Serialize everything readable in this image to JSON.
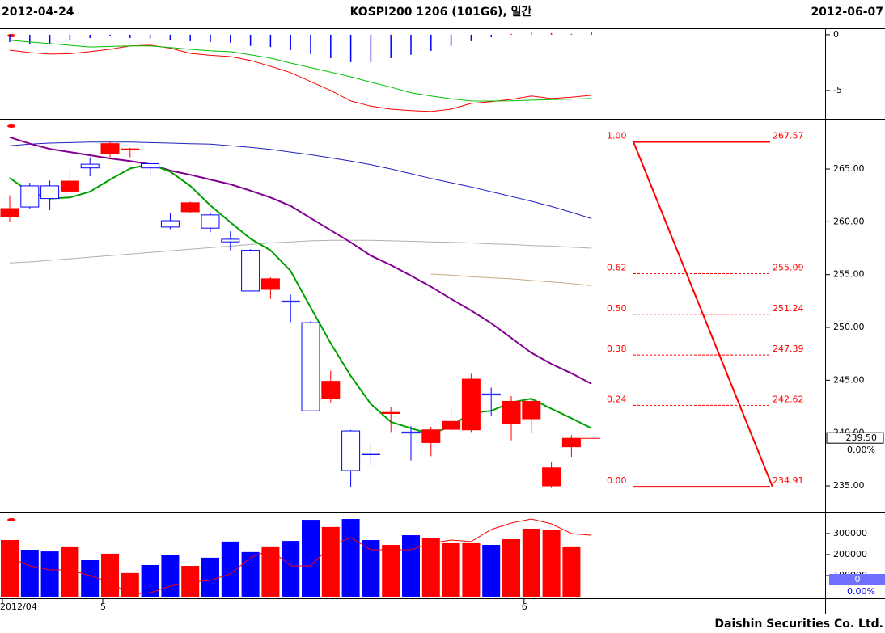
{
  "header": {
    "left": "2012-04-24",
    "title": "KOSPI200 1206 (101G6), 일간",
    "right": "2012-06-07"
  },
  "footer": "Daishin Securities Co. Ltd.",
  "chart_data": [
    {
      "type": "macd",
      "ylim": [
        -7.54,
        0.5
      ],
      "yticks": [
        0,
        -5
      ],
      "pos_color": "#ff0000",
      "neg_color": "#0000ff",
      "histogram": [
        -0.65,
        -0.87,
        -0.87,
        -0.5,
        -0.3,
        -0.15,
        -0.3,
        -0.35,
        -0.5,
        -0.58,
        -0.65,
        -0.72,
        -1.0,
        -1.1,
        -1.38,
        -1.74,
        -2.1,
        -2.46,
        -2.46,
        -2.1,
        -1.8,
        -1.45,
        -1.0,
        -0.58,
        -0.22,
        0,
        0.2,
        0.15,
        0.08,
        0.2
      ],
      "lines": [
        {
          "color": "#ff0000",
          "values": [
            -1.38,
            -1.6,
            -1.74,
            -1.7,
            -1.52,
            -1.3,
            -1.0,
            -0.94,
            -1.2,
            -1.67,
            -1.85,
            -1.96,
            -2.3,
            -2.83,
            -3.4,
            -4.2,
            -5.0,
            -5.94,
            -6.4,
            -6.67,
            -6.8,
            -6.88,
            -6.67,
            -6.16,
            -6.0,
            -5.8,
            -5.5,
            -5.72,
            -5.6,
            -5.43
          ]
        },
        {
          "color": "#00c000",
          "values": [
            -0.5,
            -0.65,
            -0.8,
            -0.95,
            -1.1,
            -1.05,
            -1.0,
            -1.0,
            -1.15,
            -1.3,
            -1.45,
            -1.52,
            -1.8,
            -2.1,
            -2.54,
            -2.95,
            -3.35,
            -3.77,
            -4.25,
            -4.7,
            -5.2,
            -5.5,
            -5.75,
            -5.94,
            -5.95,
            -5.93,
            -5.87,
            -5.82,
            -5.77,
            -5.72
          ]
        }
      ]
    },
    {
      "type": "candlestick",
      "ylim": [
        232.55,
        269.67
      ],
      "yticks": [
        {
          "value": 235,
          "label": "235.00"
        },
        {
          "value": 240,
          "label": "240.00"
        },
        {
          "value": 245,
          "label": "245.00"
        },
        {
          "value": 250,
          "label": "250.00"
        },
        {
          "value": 255,
          "label": "255.00"
        },
        {
          "value": 260,
          "label": "260.00"
        },
        {
          "value": 265,
          "label": "265.00"
        }
      ],
      "up_color": "#ff0000",
      "down_color": "#0000ff",
      "open": [
        260.5,
        263.4,
        263.4,
        262.9,
        265.45,
        266.45,
        266.8,
        265.5,
        260.1,
        260.95,
        260.65,
        258.35,
        257.3,
        253.6,
        252.5,
        250.45,
        243.3,
        240.2,
        238.05,
        241.85,
        240.1,
        239.1,
        240.35,
        240.3,
        243.7,
        240.9,
        241.35,
        235.0,
        238.7,
        null
      ],
      "high": [
        262.5,
        263.7,
        263.9,
        264.9,
        266.1,
        267.6,
        267.0,
        265.9,
        260.8,
        261.9,
        260.9,
        259.1,
        257.4,
        254.75,
        253.1,
        250.6,
        245.9,
        240.3,
        239.05,
        242.5,
        240.65,
        240.6,
        242.5,
        245.6,
        244.3,
        243.5,
        243.35,
        237.3,
        239.8,
        null
      ],
      "low": [
        260.0,
        261.2,
        261.1,
        262.8,
        264.3,
        266.1,
        266.1,
        264.3,
        259.3,
        260.8,
        259.0,
        257.3,
        253.45,
        252.7,
        250.5,
        242.1,
        242.9,
        234.9,
        236.85,
        240.1,
        237.4,
        237.8,
        240.1,
        240.1,
        241.6,
        239.3,
        240.05,
        234.8,
        237.75,
        null
      ],
      "close": [
        261.25,
        261.4,
        262.2,
        263.85,
        265.1,
        267.4,
        266.9,
        265.1,
        259.5,
        261.8,
        259.4,
        258.1,
        253.45,
        254.6,
        252.4,
        242.1,
        244.9,
        236.45,
        237.95,
        241.95,
        240.0,
        240.3,
        241.1,
        245.1,
        243.6,
        243.0,
        243.0,
        236.7,
        239.5,
        null
      ],
      "lines": [
        {
          "color": "#b0b0b0",
          "values": [
            256.1,
            256.2,
            256.35,
            256.5,
            256.65,
            256.8,
            256.95,
            257.1,
            257.25,
            257.4,
            257.55,
            257.7,
            257.85,
            258.0,
            258.1,
            258.2,
            258.25,
            258.25,
            258.25,
            258.2,
            258.15,
            258.1,
            258.05,
            258.0,
            257.9,
            257.85,
            257.75,
            257.7,
            257.6,
            257.5
          ]
        },
        {
          "color": "#c8a880",
          "values": [
            null,
            null,
            null,
            null,
            null,
            null,
            null,
            null,
            null,
            null,
            null,
            null,
            null,
            null,
            null,
            null,
            null,
            null,
            null,
            null,
            null,
            255.05,
            254.95,
            254.8,
            254.7,
            254.6,
            254.45,
            254.3,
            254.15,
            253.95
          ]
        },
        {
          "color": "#2020c0",
          "values": [
            267.2,
            267.35,
            267.45,
            267.5,
            267.55,
            267.55,
            267.55,
            267.5,
            267.45,
            267.4,
            267.35,
            267.2,
            267.05,
            266.85,
            266.6,
            266.35,
            266.05,
            265.75,
            265.4,
            265.0,
            264.55,
            264.1,
            263.7,
            263.3,
            262.85,
            262.4,
            261.95,
            261.45,
            260.9,
            260.3
          ]
        },
        {
          "color": "#800090",
          "values": [
            268.0,
            267.4,
            266.9,
            266.6,
            266.3,
            266.0,
            265.75,
            265.45,
            264.85,
            264.45,
            264.0,
            263.55,
            262.95,
            262.3,
            261.5,
            260.35,
            259.2,
            258.05,
            256.8,
            255.9,
            254.9,
            253.85,
            252.7,
            251.6,
            250.4,
            249.0,
            247.6,
            246.55,
            245.65,
            244.65
          ]
        },
        {
          "color": "#00a000",
          "values": [
            264.15,
            262.8,
            262.2,
            262.3,
            262.85,
            264.0,
            265.05,
            265.45,
            264.75,
            263.4,
            261.55,
            259.95,
            258.4,
            257.3,
            255.35,
            251.9,
            248.5,
            245.4,
            242.75,
            241.05,
            240.45,
            239.9,
            240.65,
            241.9,
            242.1,
            242.9,
            243.25,
            242.3,
            241.4,
            240.45
          ]
        }
      ],
      "fib_color": "#ff0000",
      "fib_ratios": [
        {
          "value": 1,
          "label": "1.00"
        },
        0.62,
        {
          "value": 0.5,
          "label": "0.50"
        },
        0.38,
        0.24,
        {
          "value": 0,
          "label": "0.00"
        }
      ],
      "fib_prices": [
        267.57,
        255.09,
        251.24,
        247.39,
        242.62,
        234.91
      ],
      "current": {
        "value": 239.5,
        "label": "239.50"
      },
      "change": "0.00%"
    },
    {
      "type": "bar",
      "ylim": [
        0,
        396000
      ],
      "yticks": [
        100000,
        200000,
        300000
      ],
      "categories": [
        "2012/04",
        null,
        null,
        null,
        null,
        "5",
        null,
        null,
        null,
        null,
        null,
        null,
        null,
        null,
        null,
        null,
        null,
        null,
        null,
        null,
        null,
        null,
        null,
        null,
        null,
        null,
        "6",
        null,
        null,
        null
      ],
      "values": [
        269000,
        223000,
        215000,
        235000,
        173000,
        204000,
        112000,
        150000,
        200000,
        146000,
        185000,
        262000,
        212000,
        235000,
        265000,
        365000,
        331000,
        369000,
        269000,
        246000,
        292000,
        277000,
        254000,
        254000,
        246000,
        273000,
        323000,
        319000,
        235000,
        null
      ],
      "lines": [
        {
          "color": "#ff0000",
          "values": [
            185000,
            146000,
            127000,
            127000,
            100000,
            69000,
            12000,
            19000,
            50000,
            69000,
            77000,
            108000,
            185000,
            223000,
            146000,
            146000,
            242000,
            281000,
            223000,
            223000,
            223000,
            254000,
            269000,
            262000,
            319000,
            350000,
            369000,
            346000,
            300000,
            292000
          ]
        }
      ],
      "current": 0,
      "change": "0.00%"
    }
  ]
}
